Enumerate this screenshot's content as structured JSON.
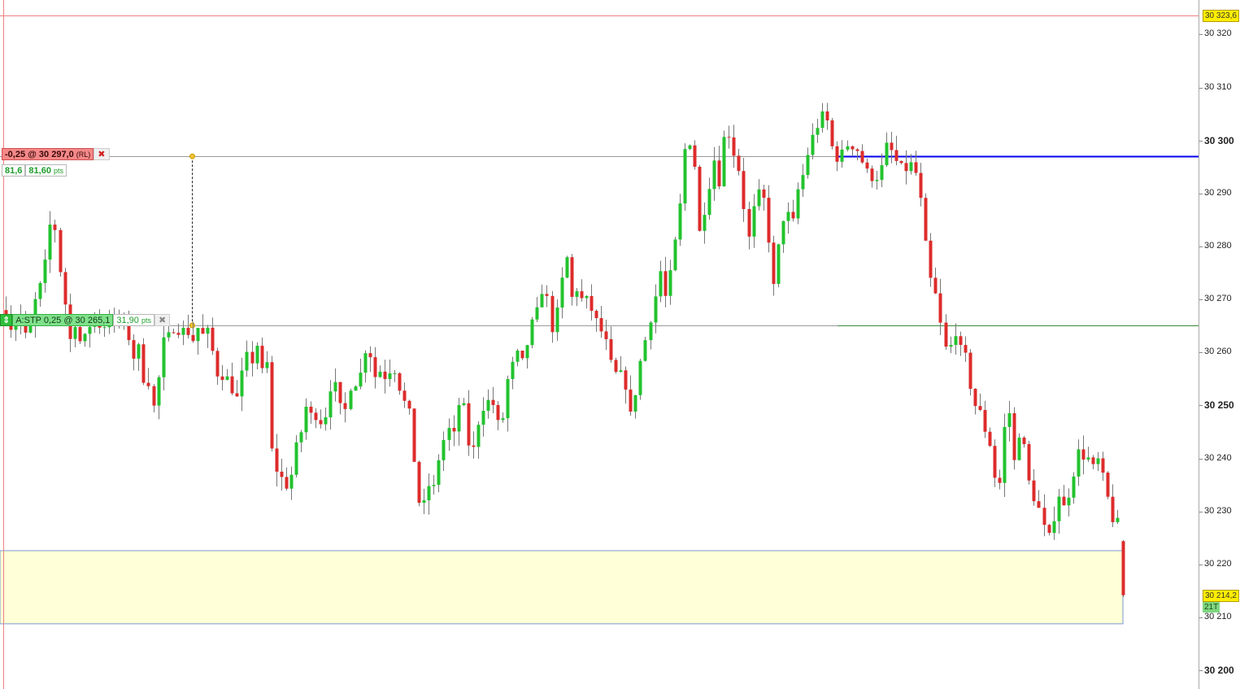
{
  "chart_data": {
    "type": "candlestick",
    "y_axis": {
      "range": [
        30196.5,
        30326.5
      ],
      "ticks": [
        30320,
        30310,
        30300,
        30290,
        30280,
        30270,
        30260,
        30250,
        30240,
        30230,
        30220,
        30210,
        30200
      ],
      "tick_labels": [
        "30 320",
        "30 310",
        "30 300",
        "30 290",
        "30 280",
        "30 270",
        "30 260",
        "30 250",
        "30 240",
        "30 230",
        "30 220",
        "30 210",
        "30 200"
      ],
      "major_ticks": [
        "30 300",
        "30 250",
        "30 200"
      ]
    },
    "keypoints": [
      [
        0,
        30266
      ],
      [
        8,
        30270
      ],
      [
        14,
        30263
      ],
      [
        20,
        30268
      ],
      [
        25,
        30262
      ],
      [
        30,
        30270
      ],
      [
        35,
        30262
      ],
      [
        42,
        30266
      ],
      [
        50,
        30273
      ],
      [
        56,
        30272
      ],
      [
        60,
        30280
      ],
      [
        64,
        30284
      ],
      [
        70,
        30284
      ],
      [
        76,
        30276
      ],
      [
        82,
        30270
      ],
      [
        88,
        30262
      ],
      [
        94,
        30266
      ],
      [
        100,
        30262
      ],
      [
        108,
        30263
      ],
      [
        115,
        30266
      ],
      [
        122,
        30268
      ],
      [
        128,
        30262
      ],
      [
        134,
        30268
      ],
      [
        140,
        30264
      ],
      [
        146,
        30268
      ],
      [
        152,
        30265
      ],
      [
        158,
        30266
      ],
      [
        166,
        30258
      ],
      [
        172,
        30263
      ],
      [
        178,
        30254
      ],
      [
        184,
        30258
      ],
      [
        188,
        30248
      ],
      [
        194,
        30251
      ],
      [
        200,
        30258
      ],
      [
        206,
        30265
      ],
      [
        212,
        30262
      ],
      [
        218,
        30266
      ],
      [
        224,
        30263
      ],
      [
        230,
        30265
      ],
      [
        236,
        30263
      ],
      [
        242,
        30262
      ],
      [
        248,
        30266
      ],
      [
        254,
        30262
      ],
      [
        260,
        30265
      ],
      [
        266,
        30258
      ],
      [
        272,
        30255
      ],
      [
        280,
        30256
      ],
      [
        288,
        30253
      ],
      [
        296,
        30251
      ],
      [
        304,
        30260
      ],
      [
        312,
        30258
      ],
      [
        318,
        30262
      ],
      [
        324,
        30256
      ],
      [
        330,
        30260
      ],
      [
        336,
        30242
      ],
      [
        342,
        30238
      ],
      [
        350,
        30236
      ],
      [
        358,
        30234
      ],
      [
        366,
        30242
      ],
      [
        372,
        30244
      ],
      [
        378,
        30250
      ],
      [
        386,
        30248
      ],
      [
        394,
        30248
      ],
      [
        400,
        30246
      ],
      [
        406,
        30250
      ],
      [
        412,
        30256
      ],
      [
        418,
        30252
      ],
      [
        424,
        30248
      ],
      [
        430,
        30250
      ],
      [
        436,
        30256
      ],
      [
        442,
        30253
      ],
      [
        448,
        30258
      ],
      [
        454,
        30262
      ],
      [
        460,
        30258
      ],
      [
        466,
        30254
      ],
      [
        472,
        30258
      ],
      [
        478,
        30254
      ],
      [
        484,
        30258
      ],
      [
        490,
        30256
      ],
      [
        496,
        30252
      ],
      [
        502,
        30250
      ],
      [
        508,
        30248
      ],
      [
        514,
        30236
      ],
      [
        520,
        30230
      ],
      [
        526,
        30232
      ],
      [
        532,
        30236
      ],
      [
        538,
        30234
      ],
      [
        544,
        30242
      ],
      [
        550,
        30244
      ],
      [
        556,
        30246
      ],
      [
        562,
        30244
      ],
      [
        568,
        30252
      ],
      [
        574,
        30249
      ],
      [
        580,
        30241
      ],
      [
        586,
        30242
      ],
      [
        592,
        30248
      ],
      [
        598,
        30250
      ],
      [
        604,
        30251
      ],
      [
        610,
        30250
      ],
      [
        616,
        30246
      ],
      [
        622,
        30248
      ],
      [
        628,
        30256
      ],
      [
        634,
        30258
      ],
      [
        640,
        30260
      ],
      [
        646,
        30258
      ],
      [
        652,
        30262
      ],
      [
        658,
        30266
      ],
      [
        664,
        30268
      ],
      [
        670,
        30272
      ],
      [
        676,
        30270
      ],
      [
        682,
        30264
      ],
      [
        688,
        30268
      ],
      [
        694,
        30274
      ],
      [
        700,
        30278
      ],
      [
        706,
        30270
      ],
      [
        712,
        30272
      ],
      [
        718,
        30270
      ],
      [
        724,
        30270
      ],
      [
        730,
        30268
      ],
      [
        736,
        30266
      ],
      [
        742,
        30264
      ],
      [
        748,
        30262
      ],
      [
        754,
        30258
      ],
      [
        760,
        30256
      ],
      [
        766,
        30256
      ],
      [
        772,
        30254
      ],
      [
        778,
        30248
      ],
      [
        784,
        30252
      ],
      [
        790,
        30258
      ],
      [
        796,
        30262
      ],
      [
        802,
        30266
      ],
      [
        808,
        30270
      ],
      [
        814,
        30276
      ],
      [
        820,
        30270
      ],
      [
        826,
        30274
      ],
      [
        832,
        30280
      ],
      [
        838,
        30286
      ],
      [
        844,
        30298
      ],
      [
        850,
        30300
      ],
      [
        856,
        30298
      ],
      [
        862,
        30282
      ],
      [
        868,
        30286
      ],
      [
        874,
        30290
      ],
      [
        880,
        30298
      ],
      [
        886,
        30290
      ],
      [
        892,
        30300
      ],
      [
        898,
        30302
      ],
      [
        904,
        30298
      ],
      [
        910,
        30296
      ],
      [
        916,
        30290
      ],
      [
        922,
        30280
      ],
      [
        928,
        30286
      ],
      [
        934,
        30290
      ],
      [
        940,
        30290
      ],
      [
        946,
        30286
      ],
      [
        952,
        30270
      ],
      [
        958,
        30278
      ],
      [
        964,
        30284
      ],
      [
        970,
        30288
      ],
      [
        976,
        30282
      ],
      [
        982,
        30290
      ],
      [
        988,
        30292
      ],
      [
        994,
        30296
      ],
      [
        1000,
        30300
      ],
      [
        1006,
        30302
      ],
      [
        1012,
        30304
      ],
      [
        1018,
        30306
      ],
      [
        1024,
        30300
      ],
      [
        1030,
        30297
      ],
      [
        1036,
        30296
      ],
      [
        1042,
        30300
      ],
      [
        1048,
        30298
      ],
      [
        1054,
        30300
      ],
      [
        1060,
        30296
      ],
      [
        1066,
        30296
      ],
      [
        1072,
        30292
      ],
      [
        1078,
        30294
      ],
      [
        1084,
        30292
      ],
      [
        1090,
        30298
      ],
      [
        1096,
        30300
      ],
      [
        1102,
        30296
      ],
      [
        1108,
        30296
      ],
      [
        1114,
        30294
      ],
      [
        1120,
        30295
      ],
      [
        1126,
        30296
      ],
      [
        1132,
        30292
      ],
      [
        1138,
        30286
      ],
      [
        1144,
        30276
      ],
      [
        1150,
        30272
      ],
      [
        1156,
        30270
      ],
      [
        1162,
        30262
      ],
      [
        1168,
        30260
      ],
      [
        1174,
        30262
      ],
      [
        1180,
        30265
      ],
      [
        1186,
        30258
      ],
      [
        1192,
        30260
      ],
      [
        1198,
        30250
      ],
      [
        1204,
        30250
      ],
      [
        1210,
        30248
      ],
      [
        1216,
        30244
      ],
      [
        1222,
        30242
      ],
      [
        1228,
        30234
      ],
      [
        1234,
        30236
      ],
      [
        1240,
        30250
      ],
      [
        1246,
        30248
      ],
      [
        1252,
        30236
      ],
      [
        1258,
        30248
      ],
      [
        1264,
        30240
      ],
      [
        1270,
        30234
      ],
      [
        1276,
        30232
      ],
      [
        1282,
        30230
      ],
      [
        1288,
        30226
      ],
      [
        1294,
        30225
      ],
      [
        1300,
        30230
      ],
      [
        1306,
        30234
      ],
      [
        1312,
        30230
      ],
      [
        1318,
        30234
      ],
      [
        1324,
        30238
      ],
      [
        1330,
        30242
      ],
      [
        1336,
        30240
      ],
      [
        1342,
        30240
      ],
      [
        1348,
        30238
      ],
      [
        1354,
        30240
      ],
      [
        1360,
        30236
      ],
      [
        1366,
        30232
      ],
      [
        1372,
        30228
      ],
      [
        1378,
        30228
      ],
      [
        1382,
        30214.2
      ]
    ],
    "levels": [
      {
        "name": "top-red-line",
        "price": 30323.6,
        "color": "#f08080"
      },
      {
        "name": "sell-order-line",
        "price": 30297.0,
        "color": "#9a9a9a"
      },
      {
        "name": "blue-level",
        "price": 30297.0,
        "color": "#0000ee"
      },
      {
        "name": "stop-order-line",
        "price": 30265.1,
        "color": "#3a8a3a"
      }
    ],
    "zone": {
      "top": 30222.6,
      "bottom": 30208.8,
      "fill": "#ffffd8",
      "border": "#7a9ad0"
    },
    "colors": {
      "up": "#22c32e",
      "down": "#dd2b2b",
      "wick": "#777777",
      "blue": "#0000ee"
    }
  },
  "labels": {
    "top_price": "30 323,6",
    "last_price": "30 214,2",
    "tick_count": "21T",
    "sell_order": "-0,25 @ 30 297,0",
    "sell_order_tag": "(RL)",
    "sell_pts_a": "81,6",
    "sell_pts_b": "81,60",
    "pts_unit": "pts",
    "stop_order": "A:STP  0,25 @ 30 265,1",
    "stop_pts": "31,90",
    "close_symbol": "✖"
  }
}
